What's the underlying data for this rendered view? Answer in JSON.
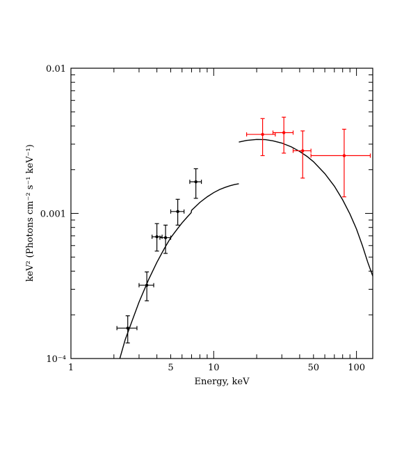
{
  "chart_data": {
    "type": "scatter",
    "xlabel": "Energy, keV",
    "ylabel": "keV² (Photons cm⁻² s⁻¹ keV⁻¹)",
    "xscale": "log",
    "yscale": "log",
    "xlim": [
      1,
      130
    ],
    "ylim": [
      0.0001,
      0.01
    ],
    "x_ticks": [
      {
        "value": 1,
        "label": "1"
      },
      {
        "value": 5,
        "label": "5"
      },
      {
        "value": 10,
        "label": "10"
      },
      {
        "value": 50,
        "label": "50"
      },
      {
        "value": 100,
        "label": "100"
      }
    ],
    "y_ticks": [
      {
        "value": 0.0001,
        "label": "10⁻⁴"
      },
      {
        "value": 0.001,
        "label": "0.001"
      },
      {
        "value": 0.01,
        "label": "0.01"
      }
    ],
    "grid": false,
    "series": [
      {
        "color": "#000000",
        "points": [
          {
            "x": 2.5,
            "xlo": 2.1,
            "xhi": 2.9,
            "y": 0.000162,
            "ylo": 0.000128,
            "yhi": 0.000197
          },
          {
            "x": 3.4,
            "xlo": 3.0,
            "xhi": 3.8,
            "y": 0.00032,
            "ylo": 0.00025,
            "yhi": 0.000395
          },
          {
            "x": 4.0,
            "xlo": 3.7,
            "xhi": 4.35,
            "y": 0.00069,
            "ylo": 0.00055,
            "yhi": 0.00085
          },
          {
            "x": 4.6,
            "xlo": 4.2,
            "xhi": 5.0,
            "y": 0.00068,
            "ylo": 0.00053,
            "yhi": 0.00083
          },
          {
            "x": 5.6,
            "xlo": 5.0,
            "xhi": 6.2,
            "y": 0.00103,
            "ylo": 0.00083,
            "yhi": 0.00125
          },
          {
            "x": 7.5,
            "xlo": 6.8,
            "xhi": 8.2,
            "y": 0.00165,
            "ylo": 0.00127,
            "yhi": 0.00203
          }
        ]
      },
      {
        "color": "#ff0000",
        "points": [
          {
            "x": 22,
            "xlo": 17,
            "xhi": 27,
            "y": 0.0035,
            "ylo": 0.0025,
            "yhi": 0.0045
          },
          {
            "x": 31,
            "xlo": 26,
            "xhi": 36,
            "y": 0.0036,
            "ylo": 0.0026,
            "yhi": 0.0046
          },
          {
            "x": 42,
            "xlo": 36,
            "xhi": 48,
            "y": 0.0027,
            "ylo": 0.00175,
            "yhi": 0.0037
          },
          {
            "x": 82,
            "xlo": 48,
            "xhi": 125,
            "y": 0.0025,
            "ylo": 0.0013,
            "yhi": 0.0038
          }
        ]
      }
    ],
    "model_curves": [
      {
        "color": "#000000",
        "points": [
          [
            2.2,
            0.0001
          ],
          [
            2.4,
            0.000135
          ],
          [
            2.7,
            0.000185
          ],
          [
            3.0,
            0.000245
          ],
          [
            3.5,
            0.00035
          ],
          [
            4.0,
            0.00046
          ],
          [
            4.5,
            0.00057
          ],
          [
            5.0,
            0.00068
          ],
          [
            5.5,
            0.00077
          ],
          [
            6.0,
            0.00086
          ],
          [
            6.5,
            0.00094
          ],
          [
            6.95,
            0.00101
          ],
          [
            7.0,
            0.00105
          ],
          [
            7.5,
            0.00112
          ],
          [
            8.0,
            0.00119
          ],
          [
            9.0,
            0.0013
          ],
          [
            10.0,
            0.00139
          ],
          [
            11.0,
            0.00146
          ],
          [
            12.0,
            0.00151
          ],
          [
            13.0,
            0.00155
          ],
          [
            14.0,
            0.00158
          ],
          [
            15.0,
            0.0016
          ]
        ]
      },
      {
        "color": "#000000",
        "points": [
          [
            15,
            0.0031
          ],
          [
            17,
            0.00318
          ],
          [
            20,
            0.00323
          ],
          [
            23,
            0.00322
          ],
          [
            26,
            0.00316
          ],
          [
            30,
            0.00305
          ],
          [
            35,
            0.00287
          ],
          [
            40,
            0.00267
          ],
          [
            45,
            0.00247
          ],
          [
            50,
            0.00227
          ],
          [
            60,
            0.00188
          ],
          [
            70,
            0.00154
          ],
          [
            80,
            0.00124
          ],
          [
            90,
            0.00099
          ],
          [
            100,
            0.00078
          ],
          [
            110,
            0.0006
          ],
          [
            120,
            0.00046
          ],
          [
            130,
            0.00037
          ]
        ]
      }
    ]
  }
}
